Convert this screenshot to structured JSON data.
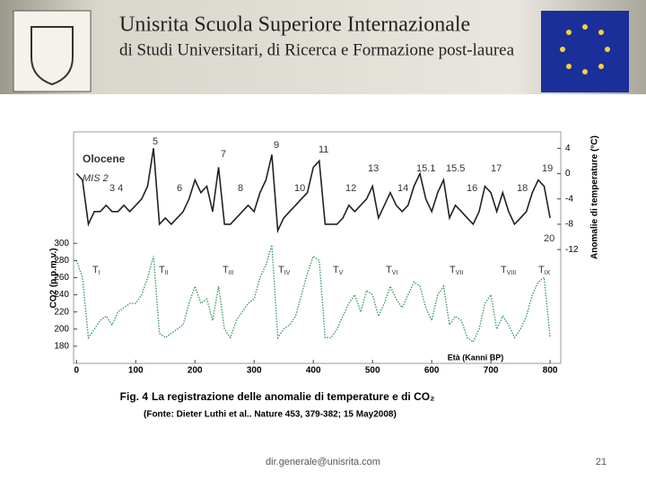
{
  "header": {
    "title": "Unisrita  Scuola Superiore Internazionale",
    "subtitle": "di Studi Universitari, di Ricerca e Formazione post-laurea"
  },
  "figure": {
    "chart_data": {
      "type": "line",
      "xlabel": "Età (Kanni BP)",
      "ylabel": "CO2 (p.p.m.v.)",
      "y2label": "Anomalie di temperature (°C)",
      "x": [
        0,
        10,
        20,
        30,
        40,
        50,
        60,
        70,
        80,
        90,
        100,
        110,
        120,
        130,
        140,
        150,
        160,
        170,
        180,
        190,
        200,
        210,
        220,
        230,
        240,
        250,
        260,
        270,
        280,
        290,
        300,
        310,
        320,
        330,
        340,
        350,
        360,
        370,
        380,
        390,
        400,
        410,
        420,
        430,
        440,
        450,
        460,
        470,
        480,
        490,
        500,
        510,
        520,
        530,
        540,
        550,
        560,
        570,
        580,
        590,
        600,
        610,
        620,
        630,
        640,
        650,
        660,
        670,
        680,
        690,
        700,
        710,
        720,
        730,
        740,
        750,
        760,
        770,
        780,
        790,
        800
      ],
      "series": [
        {
          "color": "#222222",
          "axis": "y2",
          "values": [
            0,
            -1,
            -8,
            -6,
            -6,
            -5,
            -6,
            -6,
            -5,
            -6,
            -5,
            -4,
            -2,
            4,
            -8,
            -7,
            -8,
            -7,
            -6,
            -4,
            -1,
            -3,
            -2,
            -6,
            1,
            -8,
            -8,
            -7,
            -6,
            -5,
            -6,
            -3,
            -1,
            3,
            -9,
            -7,
            -6,
            -5,
            -4,
            -3,
            1,
            2,
            -8,
            -8,
            -8,
            -7,
            -5,
            -6,
            -5,
            -4,
            -2,
            -7,
            -5,
            -3,
            -5,
            -6,
            -5,
            -2,
            0,
            -4,
            -6,
            -3,
            -1,
            -7,
            -5,
            -6,
            -7,
            -8,
            -6,
            -2,
            -3,
            -6,
            -3,
            -6,
            -8,
            -7,
            -6,
            -3,
            -1,
            -2,
            -7
          ]
        },
        {
          "color": "#3d9a62",
          "values": [
            280,
            260,
            190,
            200,
            210,
            215,
            205,
            220,
            225,
            230,
            230,
            240,
            260,
            285,
            195,
            190,
            195,
            200,
            205,
            230,
            250,
            230,
            235,
            210,
            250,
            200,
            190,
            210,
            220,
            230,
            235,
            260,
            275,
            298,
            190,
            200,
            205,
            215,
            240,
            265,
            285,
            280,
            190,
            190,
            200,
            215,
            230,
            240,
            220,
            245,
            240,
            215,
            230,
            250,
            235,
            225,
            240,
            255,
            250,
            225,
            210,
            240,
            250,
            205,
            215,
            210,
            190,
            185,
            200,
            230,
            240,
            200,
            215,
            205,
            190,
            200,
            215,
            240,
            255,
            260,
            190
          ]
        }
      ],
      "xlim": [
        -5,
        818
      ],
      "xticks": [
        0,
        100,
        200,
        300,
        400,
        500,
        600,
        700,
        800
      ],
      "ylim": [
        160,
        430
      ],
      "yticks": [
        180,
        200,
        220,
        240,
        260,
        280,
        300
      ],
      "y2lim": [
        -30,
        6.6
      ],
      "y2ticks": [
        4,
        0,
        -4,
        -8,
        -12
      ],
      "annotations": [
        "Olocene",
        "MIS 2",
        "5",
        "7",
        "9",
        "11",
        "13",
        "15.1",
        "15.5",
        "17",
        "19",
        "3 4",
        "6",
        "8",
        "10",
        "12",
        "14",
        "16",
        "18",
        "20"
      ],
      "terminations": [
        {
          "main": "T",
          "sub": "I"
        },
        {
          "main": "T",
          "sub": "II"
        },
        {
          "main": "T",
          "sub": "III"
        },
        {
          "main": "T",
          "sub": "IV"
        },
        {
          "main": "T",
          "sub": "V"
        },
        {
          "main": "T",
          "sub": "VI"
        },
        {
          "main": "T",
          "sub": "VII"
        },
        {
          "main": "T",
          "sub": "VIII"
        },
        {
          "main": "T",
          "sub": "IX"
        }
      ]
    },
    "caption_label": "Fig. 4",
    "caption": "La registrazione delle anomalie di temperature e di CO₂",
    "source": "(Fonte: Dieter Luthi et al.. Nature 453, 379-382; 15 May2008)"
  },
  "footer": {
    "email": "dir.generale@unisrita.com",
    "page": "21"
  }
}
